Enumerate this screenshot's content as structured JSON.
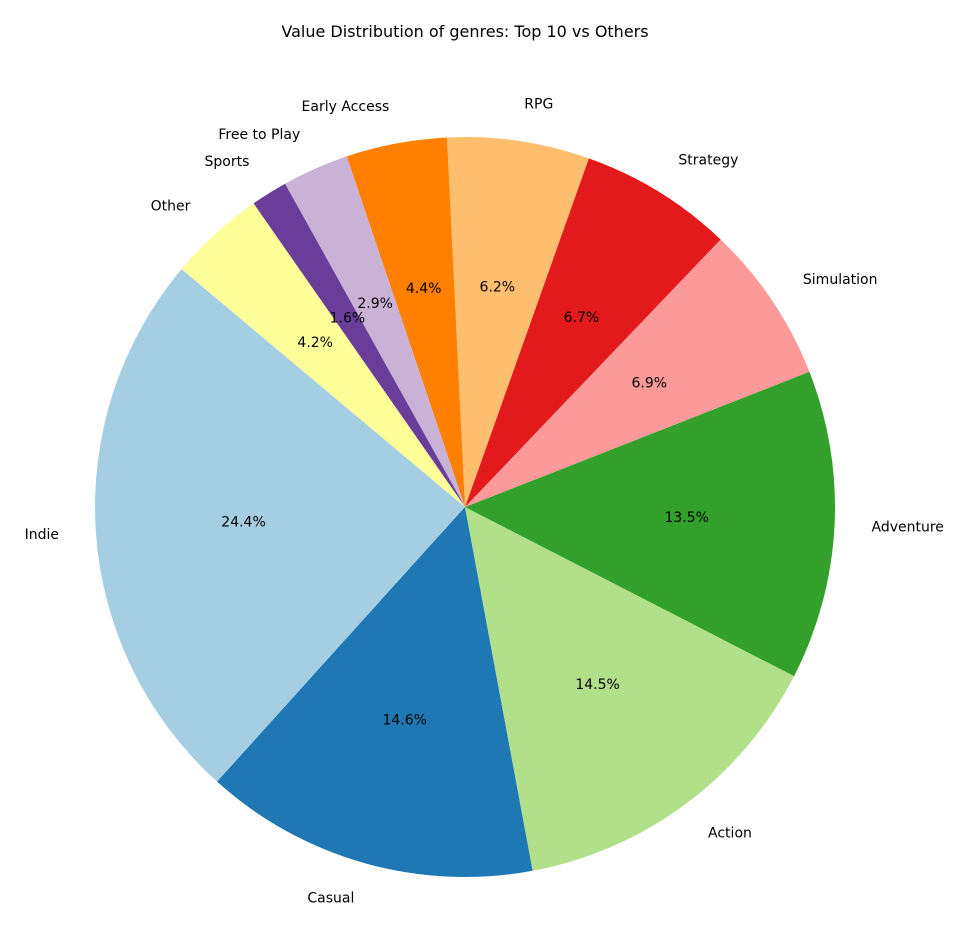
{
  "chart_data": {
    "type": "pie",
    "title": "Value Distribution of genres: Top 10 vs Others",
    "start_angle_deg": 140,
    "direction": "counterclockwise",
    "slices": [
      {
        "label": "Indie",
        "percent": 24.4,
        "percent_label": "24.4%",
        "color": "#a6cee3"
      },
      {
        "label": "Casual",
        "percent": 14.6,
        "percent_label": "14.6%",
        "color": "#1f78b4"
      },
      {
        "label": "Action",
        "percent": 14.5,
        "percent_label": "14.5%",
        "color": "#b2df8a"
      },
      {
        "label": "Adventure",
        "percent": 13.5,
        "percent_label": "13.5%",
        "color": "#33a02c"
      },
      {
        "label": "Simulation",
        "percent": 6.9,
        "percent_label": "6.9%",
        "color": "#fb9a99"
      },
      {
        "label": "Strategy",
        "percent": 6.7,
        "percent_label": "6.7%",
        "color": "#e31a1c"
      },
      {
        "label": "RPG",
        "percent": 6.2,
        "percent_label": "6.2%",
        "color": "#fdbf6f"
      },
      {
        "label": "Early Access",
        "percent": 4.4,
        "percent_label": "4.4%",
        "color": "#ff7f00"
      },
      {
        "label": "Free to Play",
        "percent": 2.9,
        "percent_label": "2.9%",
        "color": "#cab2d6"
      },
      {
        "label": "Sports",
        "percent": 1.6,
        "percent_label": "1.6%",
        "color": "#6a3d9a"
      },
      {
        "label": "Other",
        "percent": 4.2,
        "percent_label": "4.2%",
        "color": "#ffff99"
      }
    ]
  }
}
